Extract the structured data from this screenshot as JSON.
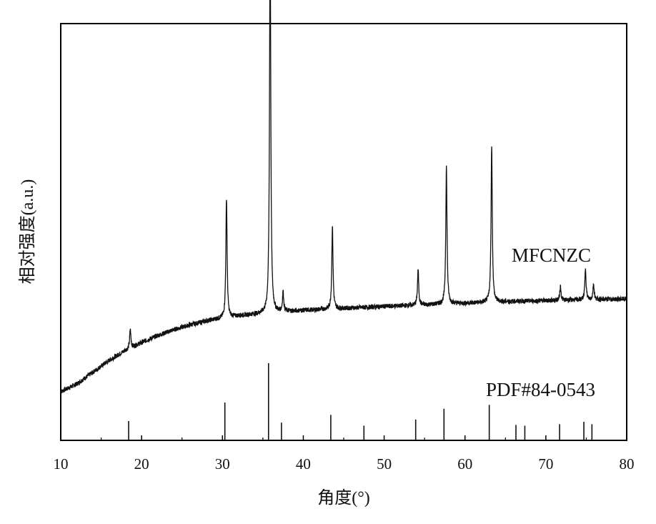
{
  "chart_data": {
    "type": "line",
    "xlabel": "角度(°)",
    "ylabel": "相对强度(a.u.)",
    "xlim": [
      10,
      80
    ],
    "x_ticks": [
      10,
      20,
      30,
      40,
      50,
      60,
      70,
      80
    ],
    "grid": false,
    "series": [
      {
        "name": "MFCNZC",
        "baseline": [
          [
            10,
            0.14
          ],
          [
            12,
            0.16
          ],
          [
            14,
            0.19
          ],
          [
            16,
            0.22
          ],
          [
            18,
            0.245
          ],
          [
            20,
            0.265
          ],
          [
            22,
            0.283
          ],
          [
            24,
            0.298
          ],
          [
            26,
            0.31
          ],
          [
            28,
            0.32
          ],
          [
            30,
            0.327
          ],
          [
            32,
            0.333
          ],
          [
            34,
            0.337
          ],
          [
            36,
            0.341
          ],
          [
            40,
            0.347
          ],
          [
            45,
            0.352
          ],
          [
            50,
            0.357
          ],
          [
            55,
            0.361
          ],
          [
            60,
            0.365
          ],
          [
            65,
            0.369
          ],
          [
            70,
            0.372
          ],
          [
            75,
            0.374
          ],
          [
            80,
            0.376
          ]
        ],
        "peaks": [
          {
            "x": 18.6,
            "height": 0.048
          },
          {
            "x": 30.5,
            "height": 0.305
          },
          {
            "x": 35.9,
            "height": 1.0
          },
          {
            "x": 37.5,
            "height": 0.05
          },
          {
            "x": 43.6,
            "height": 0.21
          },
          {
            "x": 54.2,
            "height": 0.09
          },
          {
            "x": 57.7,
            "height": 0.35
          },
          {
            "x": 63.3,
            "height": 0.4
          },
          {
            "x": 71.8,
            "height": 0.035
          },
          {
            "x": 74.9,
            "height": 0.08
          },
          {
            "x": 75.9,
            "height": 0.04
          }
        ]
      },
      {
        "name": "PDF#84-0543",
        "type": "reference-sticks",
        "sticks": [
          {
            "x": 18.4,
            "intensity": 0.25
          },
          {
            "x": 30.3,
            "intensity": 0.49
          },
          {
            "x": 35.7,
            "intensity": 1.0
          },
          {
            "x": 37.3,
            "intensity": 0.23
          },
          {
            "x": 43.4,
            "intensity": 0.33
          },
          {
            "x": 47.5,
            "intensity": 0.19
          },
          {
            "x": 53.9,
            "intensity": 0.27
          },
          {
            "x": 57.4,
            "intensity": 0.41
          },
          {
            "x": 63.0,
            "intensity": 0.46
          },
          {
            "x": 66.3,
            "intensity": 0.2
          },
          {
            "x": 67.4,
            "intensity": 0.19
          },
          {
            "x": 71.7,
            "intensity": 0.21
          },
          {
            "x": 74.7,
            "intensity": 0.24
          },
          {
            "x": 75.7,
            "intensity": 0.21
          }
        ]
      }
    ],
    "annotations": [
      "MFCNZC",
      "PDF#84-0543"
    ]
  }
}
